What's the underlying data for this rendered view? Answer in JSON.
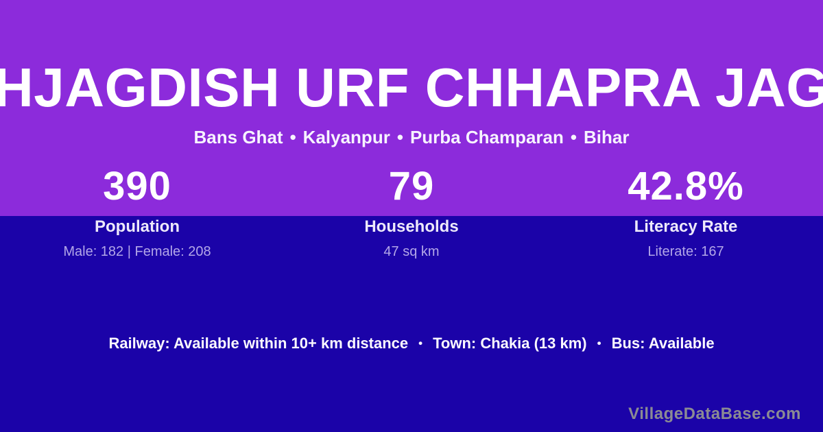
{
  "card": {
    "village_name": "HJAGDISH URF CHHAPRA JAG",
    "location": {
      "parts": [
        "Bans Ghat",
        "Kalyanpur",
        "Purba Champaran",
        "Bihar"
      ],
      "separator": "•"
    },
    "stats": [
      {
        "value": "390",
        "label": "Population",
        "detail": "Male: 182 | Female: 208"
      },
      {
        "value": "79",
        "label": "Households",
        "detail": "47 sq km"
      },
      {
        "value": "42.8%",
        "label": "Literacy Rate",
        "detail": "Literate: 167"
      }
    ],
    "transport": {
      "items": [
        "Railway: Available within 10+ km distance",
        "Town: Chakia (13 km)",
        "Bus: Available"
      ],
      "separator": "•"
    },
    "watermark": "VillageDataBase.com",
    "colors": {
      "top_background": "#8C2BDB",
      "bottom_background": "#1B03A8",
      "title_text": "#FFFFFF",
      "stat_label_text": "#EDE9FA",
      "stat_detail_text": "#B3A7E8",
      "watermark_text": "#8B8B93"
    }
  }
}
